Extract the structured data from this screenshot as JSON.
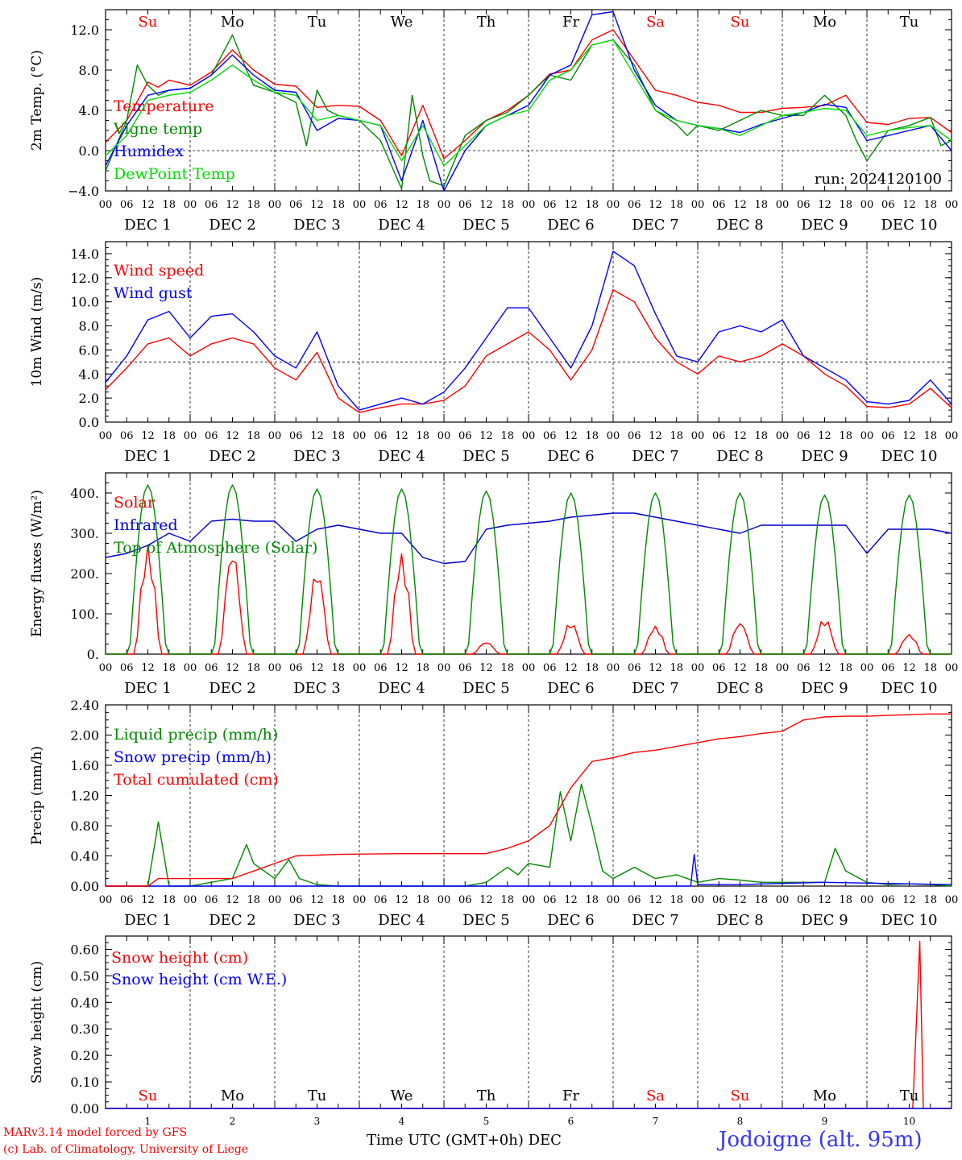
{
  "meta": {
    "run_label": "run: 2024120100",
    "station": "Jodoigne (alt. 95m)",
    "model_credit": "MARv3.14 model forced by GFS",
    "lab_credit": "(c) Lab. of Climatology, University of Liege",
    "time_axis_label": "Time UTC (GMT+0h)",
    "month_label": "DEC"
  },
  "timeline": {
    "days": [
      {
        "weekday": "Su",
        "weekend": true,
        "date": "DEC 1",
        "num": "1"
      },
      {
        "weekday": "Mo",
        "weekend": false,
        "date": "DEC 2",
        "num": "2"
      },
      {
        "weekday": "Tu",
        "weekend": false,
        "date": "DEC 3",
        "num": "3"
      },
      {
        "weekday": "We",
        "weekend": false,
        "date": "DEC 4",
        "num": "4"
      },
      {
        "weekday": "Th",
        "weekend": false,
        "date": "DEC 5",
        "num": "5"
      },
      {
        "weekday": "Fr",
        "weekend": false,
        "date": "DEC 6",
        "num": "6"
      },
      {
        "weekday": "Sa",
        "weekend": true,
        "date": "DEC 7",
        "num": "7"
      },
      {
        "weekday": "Su",
        "weekend": true,
        "date": "DEC 8",
        "num": "8"
      },
      {
        "weekday": "Mo",
        "weekend": false,
        "date": "DEC 9",
        "num": "9"
      },
      {
        "weekday": "Tu",
        "weekend": false,
        "date": "DEC 10",
        "num": "10"
      }
    ],
    "hour_ticks": [
      "00",
      "06",
      "12",
      "18"
    ],
    "end_tick": "00",
    "colors": {
      "weekend": "#ff0000",
      "weekday": "#000000"
    }
  },
  "chart_data": [
    {
      "id": "temperature",
      "type": "line",
      "ylabel": "2m Temp. (°C)",
      "ylim": [
        -4,
        14
      ],
      "yticks": [
        "−4.0",
        "0.0",
        "4.0",
        "8.0",
        "12.0"
      ],
      "ytick_values": [
        -4,
        0,
        4,
        8,
        12
      ],
      "ref_line": 0,
      "x_unit": "hours since Dec 1 00 UTC",
      "series": [
        {
          "name": "Temperature",
          "color": "#ff0000",
          "x": [
            0,
            6,
            12,
            15,
            18,
            24,
            30,
            36,
            42,
            48,
            54,
            60,
            66,
            72,
            78,
            84,
            90,
            96,
            102,
            108,
            114,
            120,
            126,
            132,
            138,
            144,
            150,
            156,
            162,
            168,
            174,
            180,
            186,
            192,
            198,
            204,
            210,
            216,
            222,
            228,
            234,
            240
          ],
          "y": [
            0.8,
            3.0,
            6.8,
            6.3,
            7.0,
            6.5,
            7.8,
            10.0,
            8.0,
            6.6,
            6.4,
            4.3,
            4.5,
            4.4,
            3.0,
            -0.5,
            4.5,
            -0.8,
            1.0,
            3.0,
            4.0,
            5.5,
            7.6,
            8.0,
            11.0,
            12.0,
            9.0,
            6.0,
            5.5,
            4.8,
            4.5,
            3.8,
            3.8,
            4.2,
            4.3,
            4.5,
            5.5,
            2.8,
            2.6,
            3.2,
            3.3,
            1.8
          ]
        },
        {
          "name": "Vigne temp",
          "color": "#008800",
          "x": [
            0,
            6,
            9,
            12,
            15,
            18,
            24,
            30,
            36,
            40,
            42,
            48,
            54,
            57,
            60,
            63,
            66,
            72,
            78,
            84,
            87,
            90,
            92,
            96,
            102,
            108,
            114,
            120,
            126,
            132,
            138,
            144,
            150,
            156,
            162,
            165,
            168,
            174,
            180,
            186,
            192,
            198,
            204,
            210,
            213,
            216,
            222,
            228,
            234,
            237,
            240
          ],
          "y": [
            -2.0,
            3.0,
            8.5,
            6.5,
            5.5,
            6.0,
            6.2,
            7.5,
            11.5,
            8.0,
            6.5,
            5.8,
            4.8,
            0.5,
            6.0,
            4.0,
            3.5,
            3.0,
            1.0,
            -3.8,
            5.5,
            -0.5,
            -3.0,
            -3.5,
            1.5,
            3.0,
            3.8,
            5.5,
            7.5,
            7.0,
            10.5,
            11.0,
            8.5,
            4.0,
            2.6,
            1.5,
            2.5,
            2.0,
            3.0,
            4.0,
            3.5,
            3.5,
            5.5,
            3.5,
            1.0,
            -1.0,
            2.0,
            2.5,
            3.3,
            0.5,
            1.0
          ]
        },
        {
          "name": "Humidex",
          "color": "#0000ff",
          "x": [
            0,
            6,
            12,
            18,
            24,
            30,
            36,
            42,
            48,
            54,
            60,
            66,
            72,
            78,
            84,
            90,
            96,
            102,
            108,
            114,
            120,
            126,
            132,
            138,
            144,
            150,
            156,
            162,
            168,
            174,
            180,
            186,
            192,
            198,
            204,
            210,
            216,
            222,
            228,
            234,
            240
          ],
          "y": [
            -1.5,
            2.5,
            5.5,
            6.0,
            6.2,
            7.5,
            9.5,
            7.5,
            6.0,
            5.8,
            2.0,
            3.2,
            3.0,
            2.5,
            -3.0,
            3.0,
            -4.0,
            0.0,
            2.5,
            3.5,
            4.5,
            7.5,
            8.5,
            13.5,
            13.8,
            8.0,
            4.5,
            3.0,
            2.5,
            2.2,
            1.8,
            2.6,
            3.2,
            3.8,
            4.6,
            4.3,
            1.0,
            1.5,
            2.0,
            2.5,
            0.0
          ]
        },
        {
          "name": "DewPoint Temp",
          "color": "#00dd00",
          "x": [
            0,
            6,
            12,
            18,
            24,
            30,
            36,
            42,
            48,
            54,
            60,
            66,
            72,
            78,
            84,
            90,
            96,
            102,
            108,
            114,
            120,
            126,
            132,
            138,
            144,
            150,
            156,
            162,
            168,
            174,
            180,
            186,
            192,
            198,
            204,
            210,
            216,
            222,
            228,
            234,
            240
          ],
          "y": [
            -0.5,
            1.5,
            5.0,
            5.5,
            5.8,
            7.0,
            8.5,
            7.0,
            5.8,
            5.5,
            3.0,
            3.5,
            3.0,
            2.5,
            -1.0,
            2.5,
            -1.5,
            0.5,
            2.5,
            3.5,
            4.0,
            7.0,
            8.0,
            10.5,
            11.0,
            7.5,
            4.0,
            3.0,
            2.5,
            2.2,
            1.5,
            2.5,
            3.5,
            3.8,
            4.2,
            4.0,
            1.5,
            2.0,
            2.3,
            2.5,
            1.0
          ]
        }
      ]
    },
    {
      "id": "wind",
      "type": "line",
      "ylabel": "10m Wind (m/s)",
      "ylim": [
        0,
        15
      ],
      "yticks": [
        "0.0",
        "2.0",
        "4.0",
        "6.0",
        "8.0",
        "10.0",
        "12.0",
        "14.0"
      ],
      "ytick_values": [
        0,
        2,
        4,
        6,
        8,
        10,
        12,
        14
      ],
      "ref_line": 5,
      "x_unit": "hours since Dec 1 00 UTC",
      "series": [
        {
          "name": "Wind speed",
          "color": "#ff0000",
          "x": [
            0,
            6,
            12,
            18,
            24,
            30,
            36,
            42,
            48,
            54,
            60,
            66,
            72,
            78,
            84,
            90,
            96,
            102,
            108,
            114,
            120,
            126,
            132,
            138,
            144,
            150,
            156,
            162,
            168,
            174,
            180,
            186,
            192,
            198,
            204,
            210,
            216,
            222,
            228,
            234,
            240
          ],
          "y": [
            2.7,
            4.5,
            6.5,
            7.0,
            5.5,
            6.5,
            7.0,
            6.5,
            4.5,
            3.5,
            5.8,
            2.0,
            0.8,
            1.2,
            1.5,
            1.5,
            1.8,
            3.0,
            5.5,
            6.5,
            7.5,
            6.0,
            3.5,
            6.0,
            11.0,
            10.0,
            7.0,
            5.0,
            4.0,
            5.5,
            5.0,
            5.5,
            6.5,
            5.5,
            4.0,
            3.0,
            1.3,
            1.2,
            1.5,
            2.8,
            1.2
          ]
        },
        {
          "name": "Wind gust",
          "color": "#0000ff",
          "x": [
            0,
            6,
            12,
            18,
            24,
            30,
            36,
            42,
            48,
            54,
            60,
            66,
            72,
            78,
            84,
            90,
            96,
            102,
            108,
            114,
            120,
            126,
            132,
            138,
            144,
            150,
            156,
            162,
            168,
            174,
            180,
            186,
            192,
            198,
            204,
            210,
            216,
            222,
            228,
            234,
            240
          ],
          "y": [
            3.3,
            5.5,
            8.5,
            9.2,
            7.0,
            8.8,
            9.0,
            7.5,
            5.5,
            4.5,
            7.5,
            3.0,
            1.0,
            1.5,
            2.0,
            1.5,
            2.5,
            4.5,
            7.0,
            9.5,
            9.5,
            7.0,
            4.5,
            8.0,
            14.2,
            13.0,
            9.0,
            5.5,
            5.0,
            7.5,
            8.0,
            7.5,
            8.5,
            5.5,
            4.5,
            3.5,
            1.7,
            1.5,
            1.8,
            3.5,
            1.5
          ]
        }
      ]
    },
    {
      "id": "energy",
      "type": "line",
      "ylabel": "Energy fluxes (W/m²)",
      "ylim": [
        0,
        450
      ],
      "yticks": [
        "0.",
        "100.",
        "200.",
        "300.",
        "400."
      ],
      "ytick_values": [
        0,
        100,
        200,
        300,
        400
      ],
      "x_unit": "hours since Dec 1 00 UTC",
      "series": [
        {
          "name": "Solar",
          "color": "#ff0000",
          "day_peaks": [
            270,
            260,
            210,
            250,
            30,
            80,
            70,
            80,
            90,
            50
          ]
        },
        {
          "name": "Infrared",
          "color": "#0000cc",
          "x": [
            0,
            6,
            12,
            18,
            24,
            30,
            36,
            42,
            48,
            54,
            60,
            66,
            72,
            78,
            84,
            90,
            96,
            102,
            108,
            114,
            120,
            126,
            132,
            138,
            144,
            150,
            156,
            162,
            168,
            174,
            180,
            186,
            192,
            198,
            204,
            210,
            216,
            222,
            228,
            234,
            240
          ],
          "y": [
            240,
            250,
            270,
            300,
            280,
            330,
            335,
            330,
            330,
            280,
            310,
            320,
            310,
            300,
            300,
            240,
            225,
            230,
            310,
            320,
            325,
            330,
            340,
            345,
            350,
            350,
            340,
            330,
            320,
            310,
            300,
            320,
            320,
            320,
            320,
            320,
            250,
            310,
            310,
            310,
            300
          ]
        },
        {
          "name": "Top of Atmosphere (Solar)",
          "color": "#008800",
          "day_peaks": [
            420,
            420,
            410,
            410,
            405,
            400,
            400,
            400,
            395,
            395
          ]
        }
      ]
    },
    {
      "id": "precip",
      "type": "line",
      "ylabel": "Precip (mm/h)",
      "ylim": [
        0,
        2.4
      ],
      "yticks": [
        "0.00",
        "0.40",
        "0.80",
        "1.20",
        "1.60",
        "2.00",
        "2.40"
      ],
      "ytick_values": [
        0,
        0.4,
        0.8,
        1.2,
        1.6,
        2.0,
        2.4
      ],
      "x_unit": "hours since Dec 1 00 UTC",
      "series": [
        {
          "name": "Liquid precip (mm/h)",
          "color": "#008800",
          "x": [
            0,
            12,
            15,
            18,
            24,
            36,
            40,
            42,
            48,
            52,
            55,
            60,
            66,
            72,
            78,
            84,
            90,
            96,
            102,
            108,
            114,
            117,
            120,
            126,
            129,
            132,
            135,
            138,
            141,
            144,
            150,
            156,
            162,
            168,
            174,
            180,
            186,
            192,
            198,
            204,
            207,
            210,
            216,
            222,
            228,
            234,
            240
          ],
          "y": [
            0,
            0,
            0.85,
            0,
            0,
            0.1,
            0.55,
            0.3,
            0.1,
            0.35,
            0.1,
            0.02,
            0,
            0,
            0,
            0,
            0,
            0,
            0,
            0.05,
            0.25,
            0.15,
            0.3,
            0.25,
            1.25,
            0.6,
            1.35,
            0.8,
            0.2,
            0.1,
            0.25,
            0.1,
            0.15,
            0.05,
            0.1,
            0.08,
            0.05,
            0.05,
            0.05,
            0.05,
            0.5,
            0.2,
            0.05,
            0.02,
            0.03,
            0.02,
            0
          ]
        },
        {
          "name": "Snow precip (mm/h)",
          "color": "#0000ff",
          "x": [
            0,
            166,
            167,
            168,
            180,
            204,
            240
          ],
          "y": [
            0,
            0,
            0.42,
            0.02,
            0.02,
            0.05,
            0.02
          ]
        },
        {
          "name": "Total cumulated (cm)",
          "color": "#ff0000",
          "x": [
            0,
            12,
            15,
            36,
            42,
            48,
            54,
            66,
            84,
            96,
            108,
            114,
            120,
            126,
            132,
            138,
            144,
            150,
            156,
            162,
            168,
            174,
            180,
            186,
            192,
            198,
            204,
            210,
            216,
            222,
            228,
            234,
            240
          ],
          "y": [
            0,
            0,
            0.1,
            0.1,
            0.2,
            0.3,
            0.4,
            0.42,
            0.43,
            0.43,
            0.43,
            0.5,
            0.6,
            0.8,
            1.3,
            1.65,
            1.7,
            1.77,
            1.8,
            1.85,
            1.9,
            1.95,
            1.98,
            2.02,
            2.05,
            2.2,
            2.24,
            2.25,
            2.25,
            2.26,
            2.27,
            2.28,
            2.28
          ]
        }
      ]
    },
    {
      "id": "snow",
      "type": "line",
      "ylabel": "Snow height (cm)",
      "ylim": [
        0,
        0.65
      ],
      "yticks": [
        "0.00",
        "0.10",
        "0.20",
        "0.30",
        "0.40",
        "0.50",
        "0.60"
      ],
      "ytick_values": [
        0,
        0.1,
        0.2,
        0.3,
        0.4,
        0.5,
        0.6
      ],
      "x_unit": "hours since Dec 1 00 UTC",
      "series": [
        {
          "name": "Snow height (cm)",
          "color": "#ff0000",
          "x": [
            0,
            229,
            231,
            232,
            240
          ],
          "y": [
            0,
            0,
            0.63,
            0,
            0
          ]
        },
        {
          "name": "Snow height (cm W.E.)",
          "color": "#0000ff",
          "x": [
            0,
            240
          ],
          "y": [
            0,
            0
          ]
        }
      ]
    }
  ]
}
